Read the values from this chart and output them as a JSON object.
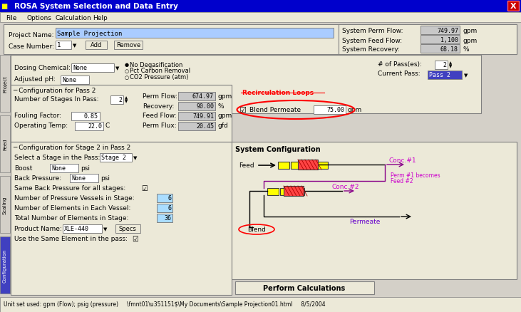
{
  "title": "ROSA System Selection and Data Entry",
  "menu_items": [
    "File",
    "Options",
    "Calculation",
    "Help"
  ],
  "project_name": "Sample Projection",
  "case_number": "1",
  "system_perm_flow": "749.97",
  "system_feed_flow": "1,100",
  "system_recovery": "68.18",
  "perm_flow": "674.97",
  "recovery": "90.00",
  "feed_flow": "749.91",
  "perm_flux": "20.45",
  "fouling_factor": "0.85",
  "operating_temp": "22.0",
  "blend_value": "75.00",
  "num_stages": "2",
  "num_vessels": "6",
  "elements_per_vessel": "6",
  "total_elements": "36",
  "product_name": "XLE-440",
  "num_passes": "2",
  "current_pass": "Pass 2",
  "status_bar": "Unit set used: gpm (Flow); psig (pressure)     \\fmnt01\\u351151$\\My Documents\\Sample Projection01.html     8/5/2004",
  "title_bar_color": "#0000CC",
  "bg_color": "#D4D0C8",
  "panel_bg": "#ECE9D8",
  "input_bg": "#FFFFFF",
  "blue_input_bg": "#C0D8F8",
  "highlight_blue": "#0000FF"
}
